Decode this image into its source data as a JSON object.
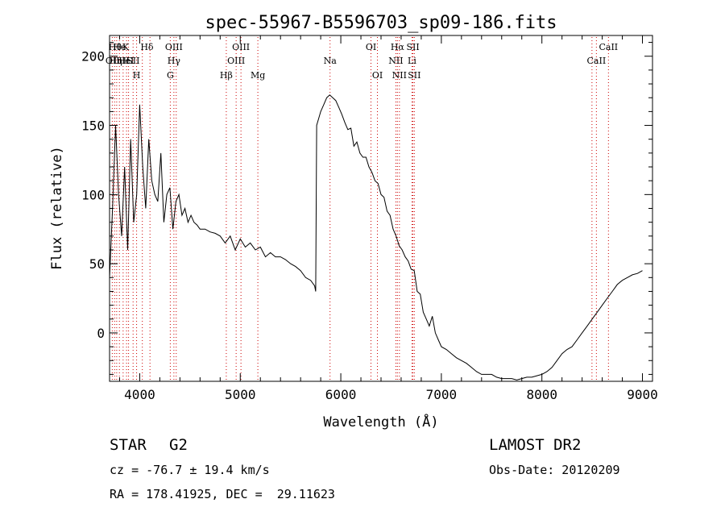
{
  "chart_data": {
    "type": "line",
    "title": "spec-55967-B5596703_sp09-186.fits",
    "xlabel": "Wavelength (Å)",
    "ylabel": "Flux (relative)",
    "xlim": [
      3700,
      9100
    ],
    "ylim": [
      -35,
      215
    ],
    "xticks": [
      4000,
      5000,
      6000,
      7000,
      8000,
      9000
    ],
    "yticks": [
      0,
      50,
      100,
      150,
      200
    ],
    "grid": false,
    "series": [
      {
        "color": "#000000",
        "x": [
          3700,
          3730,
          3760,
          3790,
          3820,
          3850,
          3880,
          3910,
          3940,
          3970,
          4000,
          4030,
          4060,
          4090,
          4120,
          4150,
          4180,
          4210,
          4240,
          4270,
          4300,
          4330,
          4360,
          4390,
          4420,
          4450,
          4480,
          4510,
          4540,
          4570,
          4600,
          4650,
          4700,
          4750,
          4800,
          4850,
          4900,
          4950,
          5000,
          5050,
          5100,
          5150,
          5200,
          5250,
          5300,
          5350,
          5400,
          5450,
          5500,
          5550,
          5600,
          5650,
          5700,
          5740,
          5750,
          5760,
          5780,
          5800,
          5830,
          5860,
          5890,
          5920,
          5950,
          5980,
          6010,
          6040,
          6070,
          6100,
          6130,
          6160,
          6190,
          6220,
          6250,
          6280,
          6310,
          6340,
          6370,
          6400,
          6430,
          6460,
          6490,
          6520,
          6550,
          6580,
          6610,
          6640,
          6670,
          6700,
          6730,
          6760,
          6790,
          6820,
          6850,
          6880,
          6910,
          6940,
          6970,
          7000,
          7050,
          7100,
          7150,
          7200,
          7250,
          7300,
          7350,
          7400,
          7450,
          7500,
          7550,
          7600,
          7650,
          7700,
          7750,
          7800,
          7850,
          7900,
          7950,
          8000,
          8050,
          8100,
          8150,
          8200,
          8250,
          8300,
          8350,
          8400,
          8450,
          8500,
          8550,
          8600,
          8650,
          8700,
          8750,
          8800,
          8850,
          8900,
          8950,
          9000
        ],
        "y": [
          40,
          90,
          150,
          100,
          70,
          120,
          60,
          140,
          80,
          100,
          165,
          120,
          90,
          140,
          110,
          100,
          95,
          130,
          80,
          100,
          105,
          75,
          95,
          100,
          85,
          90,
          80,
          85,
          80,
          78,
          75,
          75,
          73,
          72,
          70,
          65,
          70,
          60,
          68,
          62,
          65,
          60,
          62,
          55,
          58,
          55,
          55,
          53,
          50,
          48,
          45,
          40,
          38,
          34,
          30,
          150,
          155,
          160,
          165,
          170,
          172,
          170,
          168,
          163,
          158,
          152,
          147,
          148,
          135,
          138,
          130,
          127,
          127,
          120,
          116,
          110,
          108,
          100,
          98,
          88,
          85,
          75,
          70,
          63,
          60,
          55,
          52,
          46,
          45,
          30,
          28,
          15,
          10,
          5,
          12,
          0,
          -5,
          -10,
          -12,
          -15,
          -18,
          -20,
          -22,
          -25,
          -28,
          -30,
          -30,
          -30,
          -32,
          -33,
          -33,
          -33,
          -34,
          -33,
          -32,
          -32,
          -31,
          -30,
          -28,
          -25,
          -20,
          -15,
          -12,
          -10,
          -5,
          0,
          5,
          10,
          15,
          20,
          25,
          30,
          35,
          38,
          40,
          42,
          43,
          45
        ]
      }
    ],
    "line_labels": [
      {
        "x": 3730,
        "row": 1,
        "label": "OII"
      },
      {
        "x": 3755,
        "row": 0,
        "label": "Hθ"
      },
      {
        "x": 3762,
        "row": 1,
        "label": "Hη"
      },
      {
        "x": 3800,
        "row": 0,
        "label": "He"
      },
      {
        "x": 3830,
        "row": 1,
        "label": "H"
      },
      {
        "x": 3860,
        "row": 0,
        "label": "K"
      },
      {
        "x": 3860,
        "row": 1,
        "label": "H"
      },
      {
        "x": 3900,
        "row": 1,
        "label": "eI"
      },
      {
        "x": 3935,
        "row": 1,
        "label": "SII"
      },
      {
        "x": 3969,
        "row": 2,
        "label": "H"
      },
      {
        "x": 4072,
        "row": 0,
        "label": "Hδ"
      },
      {
        "x": 4340,
        "row": 0,
        "label": "OIII"
      },
      {
        "x": 4340,
        "row": 1,
        "label": "Hγ"
      },
      {
        "x": 4304,
        "row": 2,
        "label": "G"
      },
      {
        "x": 4861,
        "row": 2,
        "label": "Hβ"
      },
      {
        "x": 5007,
        "row": 0,
        "label": "OIII"
      },
      {
        "x": 4959,
        "row": 1,
        "label": "OIII"
      },
      {
        "x": 5175,
        "row": 2,
        "label": "Mg"
      },
      {
        "x": 5893,
        "row": 1,
        "label": "Na"
      },
      {
        "x": 6300,
        "row": 0,
        "label": "OI"
      },
      {
        "x": 6364,
        "row": 2,
        "label": "OI"
      },
      {
        "x": 6563,
        "row": 0,
        "label": "Hα"
      },
      {
        "x": 6548,
        "row": 1,
        "label": "NII"
      },
      {
        "x": 6583,
        "row": 2,
        "label": "NII"
      },
      {
        "x": 6717,
        "row": 0,
        "label": "SII"
      },
      {
        "x": 6708,
        "row": 1,
        "label": "Li"
      },
      {
        "x": 6731,
        "row": 2,
        "label": "SII"
      },
      {
        "x": 8542,
        "row": 1,
        "label": "CaII"
      },
      {
        "x": 8662,
        "row": 0,
        "label": "CaII"
      }
    ],
    "line_marks": [
      3727,
      3750,
      3771,
      3798,
      3835,
      3869,
      3889,
      3934,
      3969,
      4026,
      4102,
      4304,
      4340,
      4363,
      4861,
      4959,
      5007,
      5175,
      5893,
      6300,
      6364,
      6548,
      6563,
      6583,
      6708,
      6717,
      6731,
      8498,
      8542,
      8662
    ]
  },
  "info": {
    "object_class": "STAR",
    "subclass": "G2",
    "survey": "LAMOST DR2",
    "velocity": "cz = -76.7 ± 19.4 km/s",
    "obs_date": "Obs-Date: 20120209",
    "coords": "RA = 178.41925, DEC =  29.11623"
  }
}
